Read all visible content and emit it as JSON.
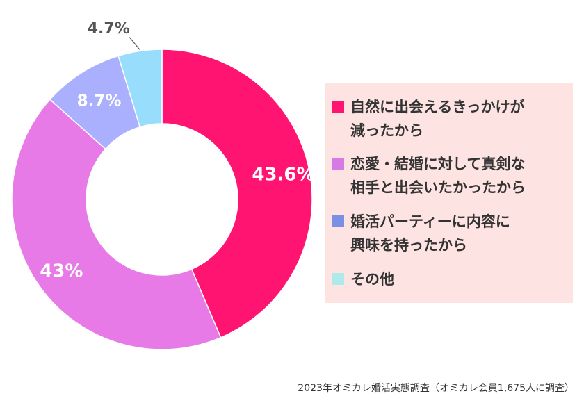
{
  "chart_data": {
    "type": "pie",
    "donut": true,
    "categories": [
      "自然に出会えるきっかけが減ったから",
      "恋愛・結婚に対して真剣な相手と出会いたかったから",
      "婚活パーティーに内容に興味を持ったから",
      "その他"
    ],
    "values": [
      43.6,
      43,
      8.7,
      4.7
    ],
    "value_labels": [
      "43.6%",
      "43%",
      "8.7%",
      "4.7%"
    ],
    "colors": [
      "#ff1472",
      "#e77ae6",
      "#aab0fd",
      "#98ddfc"
    ],
    "legend_colors": [
      "#ff1472",
      "#d77be4",
      "#7b8fe4",
      "#aeeaea"
    ],
    "legend_placement": "right",
    "legend_background": "#fde3e1",
    "start": "top",
    "direction": "clockwise"
  },
  "legend": {
    "items": [
      {
        "line1": "自然に出会えるきっかけが",
        "line2": "減ったから"
      },
      {
        "line1": "恋愛・結婚に対して真剣な",
        "line2": "相手と出会いたかったから"
      },
      {
        "line1": "婚活パーティーに内容に",
        "line2": "興味を持ったから"
      },
      {
        "line1": "その他",
        "line2": ""
      }
    ]
  },
  "footnote": "2023年オミカレ婚活実態調査（オミカレ会員1,675人に調査）"
}
